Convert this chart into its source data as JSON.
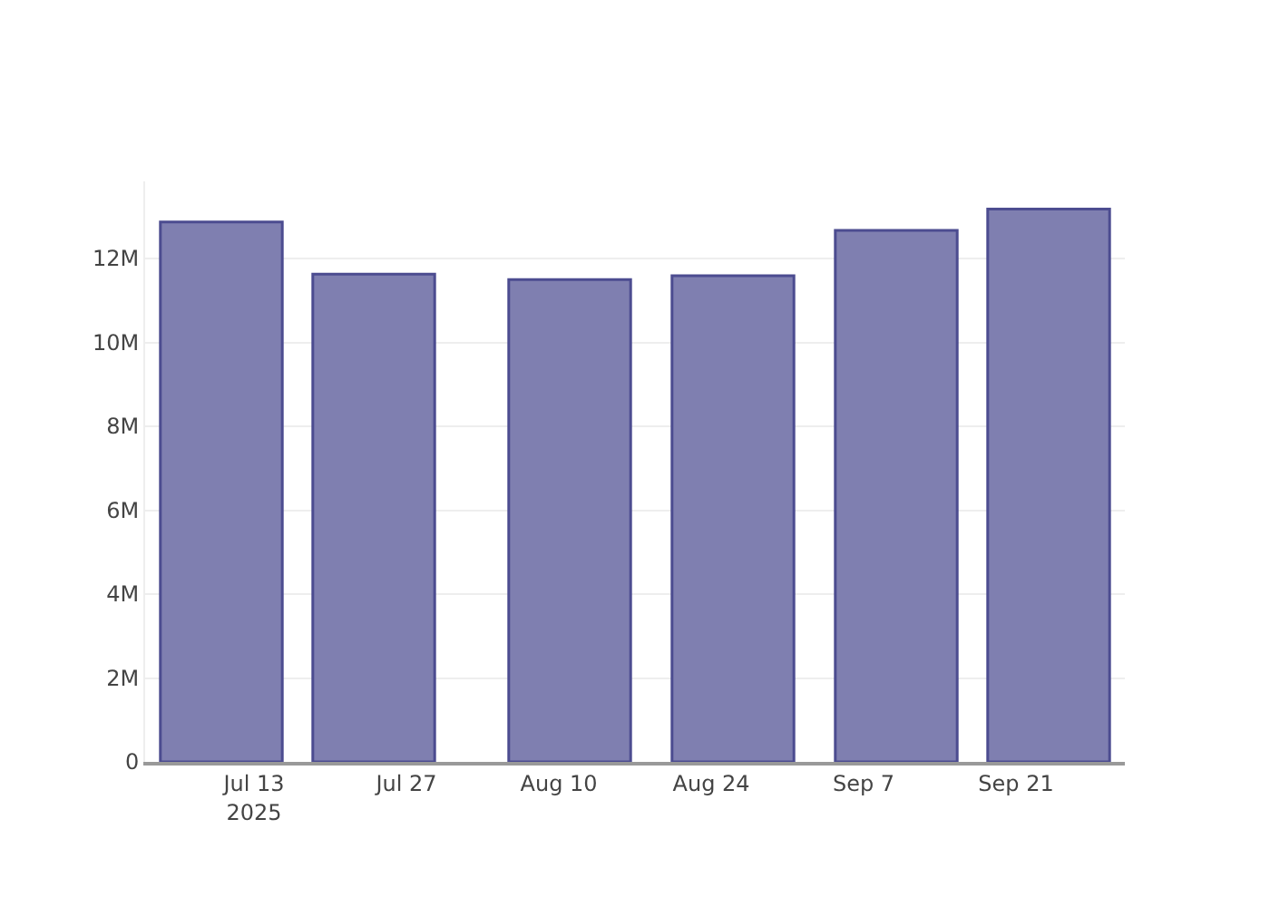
{
  "chart_data": {
    "type": "bar",
    "x": [
      "2025-07-10",
      "2025-07-24",
      "2025-08-11",
      "2025-08-26",
      "2025-09-10",
      "2025-09-24"
    ],
    "values": [
      12870000,
      11630000,
      11500000,
      11590000,
      12670000,
      13180000
    ],
    "color": "#7f7fb0",
    "xlim": [
      "2025-07-03",
      "2025-10-01"
    ],
    "xticks": [
      {
        "value": "2025-07-13",
        "label": "Jul 13\n2025"
      },
      {
        "value": "2025-07-27",
        "label": "Jul 27"
      },
      {
        "value": "2025-08-10",
        "label": "Aug 10"
      },
      {
        "value": "2025-08-24",
        "label": "Aug 24"
      },
      {
        "value": "2025-09-07",
        "label": "Sep 7"
      },
      {
        "value": "2025-09-21",
        "label": "Sep 21"
      }
    ],
    "ylim": [
      0,
      13840000
    ],
    "yticks": [
      0,
      {
        "value": 2000000,
        "label": "2M"
      },
      {
        "value": 4000000,
        "label": "4M"
      },
      {
        "value": 6000000,
        "label": "6M"
      },
      {
        "value": 8000000,
        "label": "8M"
      },
      {
        "value": 10000000,
        "label": "10M"
      },
      {
        "value": 12000000,
        "label": "12M"
      }
    ],
    "grid": "y"
  }
}
